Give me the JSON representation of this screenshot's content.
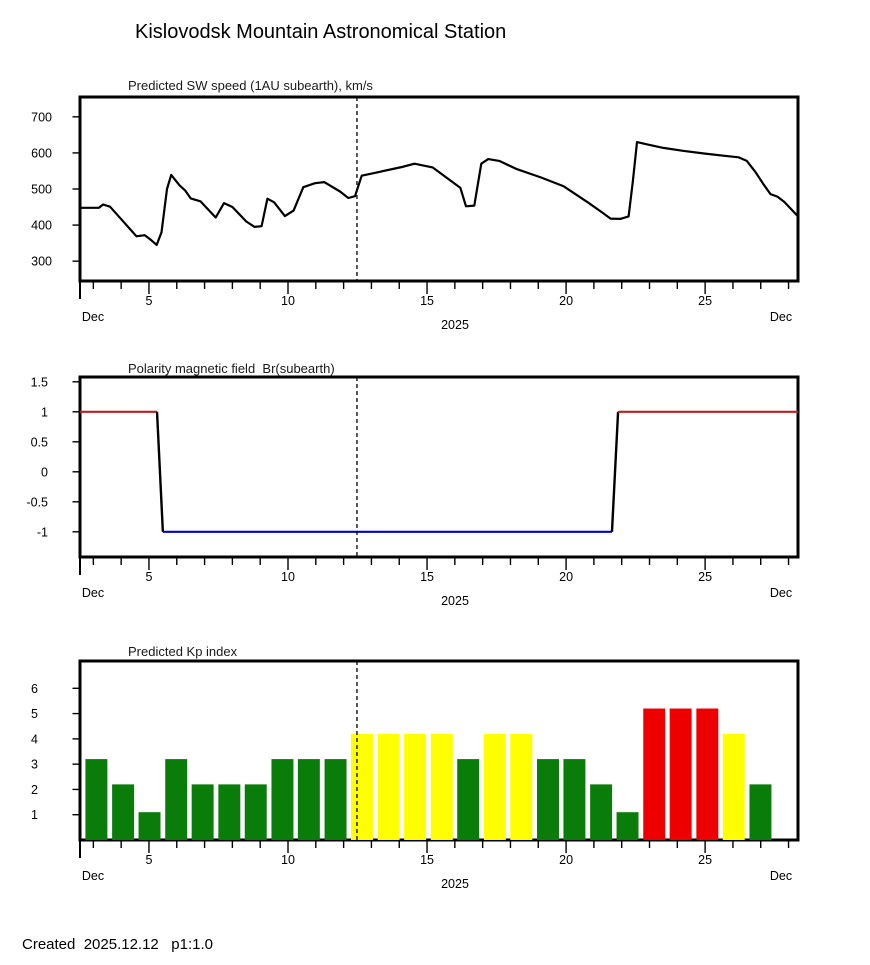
{
  "page": {
    "title": "Kislovodsk Mountain Astronomical Station",
    "footer": "Created  2025.12.12   p1:1.0"
  },
  "axis": {
    "day_start": 2.52,
    "day_end": 28.34,
    "minor_tick_start": 3,
    "minor_tick_end": 28,
    "major_tick_days": [
      5,
      10,
      15,
      20,
      25
    ],
    "month_left": "Dec",
    "month_right": "Dec",
    "year": "2025",
    "now_line_day": 12.48
  },
  "chart_data": [
    {
      "id": "sw_speed",
      "type": "line",
      "title": "Predicted SW speed (1AU subearth), km/s",
      "yticks": [
        300,
        400,
        500,
        600,
        700
      ],
      "ylim": [
        245,
        755
      ],
      "xlabel_month": "Dec",
      "xlabel_year": "2025",
      "line_color": "#000000",
      "points": [
        [
          2.52,
          448
        ],
        [
          3.2,
          448
        ],
        [
          3.35,
          457
        ],
        [
          3.6,
          451
        ],
        [
          4.1,
          408
        ],
        [
          4.55,
          369
        ],
        [
          4.85,
          372
        ],
        [
          5.05,
          360
        ],
        [
          5.28,
          345
        ],
        [
          5.45,
          380
        ],
        [
          5.65,
          500
        ],
        [
          5.8,
          539
        ],
        [
          6.1,
          510
        ],
        [
          6.3,
          496
        ],
        [
          6.5,
          474
        ],
        [
          6.85,
          466
        ],
        [
          7.4,
          421
        ],
        [
          7.7,
          461
        ],
        [
          8.0,
          450
        ],
        [
          8.5,
          410
        ],
        [
          8.8,
          395
        ],
        [
          9.05,
          397
        ],
        [
          9.26,
          473
        ],
        [
          9.5,
          463
        ],
        [
          9.89,
          425
        ],
        [
          10.2,
          440
        ],
        [
          10.55,
          505
        ],
        [
          10.97,
          516
        ],
        [
          11.3,
          519
        ],
        [
          11.87,
          493
        ],
        [
          12.17,
          475
        ],
        [
          12.41,
          480
        ],
        [
          12.65,
          537
        ],
        [
          13.2,
          546
        ],
        [
          14.1,
          561
        ],
        [
          14.55,
          570
        ],
        [
          15.2,
          560
        ],
        [
          16.2,
          503
        ],
        [
          16.4,
          452
        ],
        [
          16.7,
          454
        ],
        [
          16.95,
          570
        ],
        [
          17.2,
          583
        ],
        [
          17.6,
          578
        ],
        [
          18.2,
          556
        ],
        [
          19.1,
          532
        ],
        [
          19.9,
          508
        ],
        [
          20.8,
          462
        ],
        [
          21.3,
          435
        ],
        [
          21.6,
          418
        ],
        [
          21.95,
          417
        ],
        [
          22.25,
          424
        ],
        [
          22.4,
          520
        ],
        [
          22.55,
          630
        ],
        [
          22.9,
          624
        ],
        [
          23.5,
          614
        ],
        [
          24.2,
          606
        ],
        [
          25.0,
          598
        ],
        [
          25.7,
          592
        ],
        [
          26.2,
          588
        ],
        [
          26.5,
          578
        ],
        [
          26.8,
          548
        ],
        [
          27.1,
          513
        ],
        [
          27.35,
          486
        ],
        [
          27.6,
          479
        ],
        [
          27.85,
          464
        ],
        [
          28.34,
          424
        ]
      ]
    },
    {
      "id": "polarity_br",
      "type": "step-line",
      "title": "Polarity magnetic field  Br(subearth)",
      "yticks": [
        1.5,
        1,
        0.5,
        0,
        -0.5,
        -1
      ],
      "ylim": [
        -1.42,
        1.58
      ],
      "xlabel_month": "Dec",
      "xlabel_year": "2025",
      "positive_color": "#bb2020",
      "negative_color": "#0000cc",
      "transition_color": "#000000",
      "segments": [
        {
          "from": 2.52,
          "to": 5.29,
          "value": 1,
          "polarity": "positive"
        },
        {
          "from": 5.29,
          "to": 5.5,
          "value_from": 1,
          "value_to": -1,
          "polarity": "transition"
        },
        {
          "from": 5.5,
          "to": 21.65,
          "value": -1,
          "polarity": "negative"
        },
        {
          "from": 21.65,
          "to": 21.87,
          "value_from": -1,
          "value_to": 1,
          "polarity": "transition"
        },
        {
          "from": 21.87,
          "to": 28.34,
          "value": 1,
          "polarity": "positive"
        }
      ]
    },
    {
      "id": "kp_index",
      "type": "bar",
      "title": "Predicted Kp index",
      "yticks": [
        1,
        2,
        3,
        4,
        5,
        6
      ],
      "ylim": [
        0,
        7.08
      ],
      "xlabel_month": "Dec",
      "xlabel_year": "2025",
      "bar_width_days": 0.79,
      "levels": {
        "quiet": "#0a7c0a",
        "active": "#ffff00",
        "storm": "#ee0000"
      },
      "bars": [
        {
          "day": 3.11,
          "kp": 3.2,
          "level": "quiet"
        },
        {
          "day": 4.07,
          "kp": 2.2,
          "level": "quiet"
        },
        {
          "day": 5.02,
          "kp": 1.1,
          "level": "quiet"
        },
        {
          "day": 5.98,
          "kp": 3.2,
          "level": "quiet"
        },
        {
          "day": 6.93,
          "kp": 2.2,
          "level": "quiet"
        },
        {
          "day": 7.89,
          "kp": 2.2,
          "level": "quiet"
        },
        {
          "day": 8.84,
          "kp": 2.2,
          "level": "quiet"
        },
        {
          "day": 9.8,
          "kp": 3.2,
          "level": "quiet"
        },
        {
          "day": 10.75,
          "kp": 3.2,
          "level": "quiet"
        },
        {
          "day": 11.71,
          "kp": 3.2,
          "level": "quiet"
        },
        {
          "day": 12.66,
          "kp": 4.2,
          "level": "active"
        },
        {
          "day": 13.62,
          "kp": 4.2,
          "level": "active"
        },
        {
          "day": 14.57,
          "kp": 4.2,
          "level": "active"
        },
        {
          "day": 15.53,
          "kp": 4.2,
          "level": "active"
        },
        {
          "day": 16.48,
          "kp": 3.2,
          "level": "quiet"
        },
        {
          "day": 17.44,
          "kp": 4.2,
          "level": "active"
        },
        {
          "day": 18.39,
          "kp": 4.2,
          "level": "active"
        },
        {
          "day": 19.35,
          "kp": 3.2,
          "level": "quiet"
        },
        {
          "day": 20.3,
          "kp": 3.2,
          "level": "quiet"
        },
        {
          "day": 21.26,
          "kp": 2.2,
          "level": "quiet"
        },
        {
          "day": 22.21,
          "kp": 1.1,
          "level": "quiet"
        },
        {
          "day": 23.17,
          "kp": 5.2,
          "level": "storm"
        },
        {
          "day": 24.12,
          "kp": 5.2,
          "level": "storm"
        },
        {
          "day": 25.08,
          "kp": 5.2,
          "level": "storm"
        },
        {
          "day": 26.03,
          "kp": 4.2,
          "level": "active"
        },
        {
          "day": 26.99,
          "kp": 2.2,
          "level": "quiet"
        }
      ]
    }
  ]
}
